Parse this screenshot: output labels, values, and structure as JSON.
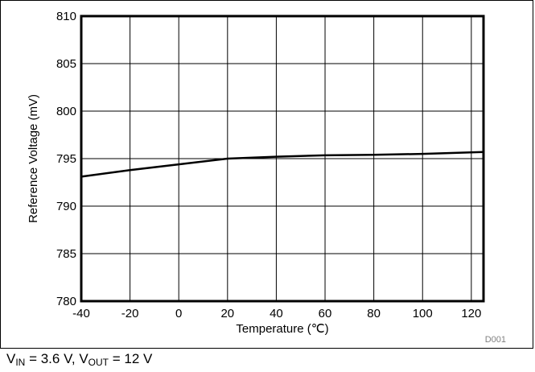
{
  "chart_data": {
    "type": "line",
    "xlabel": "Temperature (℃)",
    "ylabel": "Reference Voltage (mV)",
    "xlim": [
      -40,
      125
    ],
    "ylim": [
      780,
      810
    ],
    "x_ticks": [
      -40,
      -20,
      0,
      20,
      40,
      60,
      80,
      100,
      120
    ],
    "y_ticks": [
      780,
      785,
      790,
      795,
      800,
      805,
      810
    ],
    "grid": true,
    "legend": "none",
    "series": [
      {
        "color": "#000000",
        "x": [
          -40,
          -20,
          0,
          20,
          40,
          60,
          80,
          100,
          125
        ],
        "y": [
          793.1,
          793.8,
          794.4,
          795.0,
          795.2,
          795.35,
          795.4,
          795.5,
          795.7
        ]
      }
    ],
    "figure_id": "D001"
  },
  "caption": {
    "v_in_symbol": "V",
    "v_in_sub": "IN",
    "v_in_value": " = 3.6 V, ",
    "v_out_symbol": "V",
    "v_out_sub": "OUT",
    "v_out_value": " = 12 V"
  }
}
